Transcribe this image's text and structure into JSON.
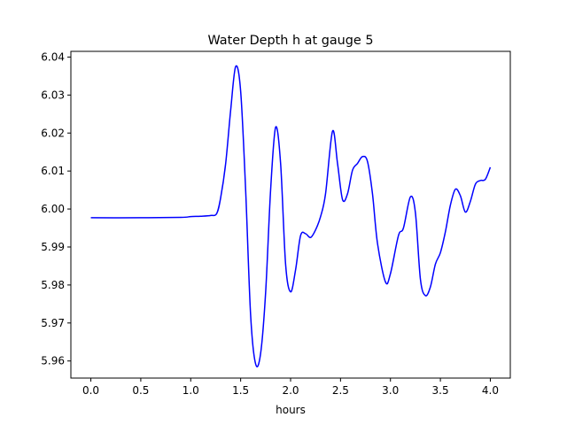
{
  "chart_data": {
    "type": "line",
    "title": "Water Depth h at gauge 5",
    "xlabel": "hours",
    "ylabel": "",
    "xlim": [
      -0.2,
      4.2
    ],
    "ylim": [
      5.9555,
      6.0415
    ],
    "xticks": [
      0.0,
      0.5,
      1.0,
      1.5,
      2.0,
      2.5,
      3.0,
      3.5,
      4.0
    ],
    "xtick_labels": [
      "0.0",
      "0.5",
      "1.0",
      "1.5",
      "2.0",
      "2.5",
      "3.0",
      "3.5",
      "4.0"
    ],
    "yticks": [
      5.96,
      5.97,
      5.98,
      5.99,
      6.0,
      6.01,
      6.02,
      6.03,
      6.04
    ],
    "ytick_labels": [
      "5.96",
      "5.97",
      "5.98",
      "5.99",
      "6.00",
      "6.01",
      "6.02",
      "6.03",
      "6.04"
    ],
    "grid": false,
    "legend": "none",
    "series": [
      {
        "color": "#0000ff",
        "x": [
          0.0,
          0.5,
          0.9,
          1.0,
          1.1,
          1.2,
          1.26,
          1.3,
          1.35,
          1.4,
          1.45,
          1.5,
          1.55,
          1.6,
          1.65,
          1.7,
          1.75,
          1.8,
          1.85,
          1.9,
          1.95,
          2.0,
          2.05,
          2.1,
          2.15,
          2.2,
          2.25,
          2.3,
          2.35,
          2.42,
          2.47,
          2.52,
          2.57,
          2.62,
          2.67,
          2.72,
          2.77,
          2.82,
          2.87,
          2.95,
          3.0,
          3.08,
          3.13,
          3.2,
          3.25,
          3.3,
          3.35,
          3.4,
          3.45,
          3.5,
          3.55,
          3.6,
          3.65,
          3.7,
          3.75,
          3.8,
          3.85,
          3.9,
          3.95,
          4.0
        ],
        "y": [
          5.9977,
          5.9977,
          5.9978,
          5.998,
          5.9981,
          5.9983,
          5.9988,
          6.003,
          6.012,
          6.026,
          6.0375,
          6.031,
          6.005,
          5.972,
          5.9592,
          5.962,
          5.978,
          6.005,
          6.0215,
          6.012,
          5.9855,
          5.9782,
          5.984,
          5.993,
          5.9935,
          5.9925,
          5.9945,
          5.998,
          6.004,
          6.0205,
          6.012,
          6.0025,
          6.004,
          6.0102,
          6.012,
          6.0138,
          6.0125,
          6.004,
          5.991,
          5.9808,
          5.983,
          5.993,
          5.995,
          6.0032,
          5.999,
          5.9815,
          5.9772,
          5.9795,
          5.9855,
          5.9885,
          5.994,
          6.001,
          6.0052,
          6.0035,
          5.9992,
          6.002,
          6.0065,
          6.0075,
          6.0078,
          6.011
        ]
      }
    ]
  }
}
